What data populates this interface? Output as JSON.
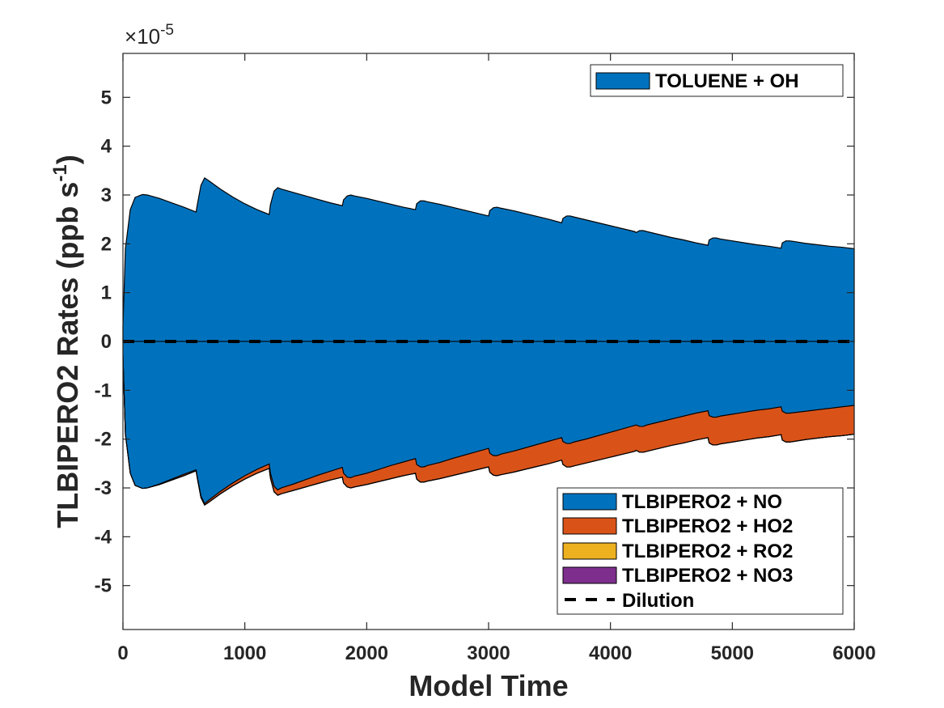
{
  "chart_data": {
    "type": "area",
    "xlabel": "Model Time",
    "ylabel": "TLBIPERO2 Rates (ppb s",
    "ylabel_superscript": "-1",
    "ylabel_suffix": ")",
    "y_multiplier": "10",
    "y_multiplier_prefix": "×",
    "y_multiplier_exponent": "-5",
    "xlim": [
      0,
      6000
    ],
    "ylim": [
      -5.9,
      5.9
    ],
    "xticks": [
      0,
      1000,
      2000,
      3000,
      4000,
      5000,
      6000
    ],
    "yticks": [
      -5,
      -4,
      -3,
      -2,
      -1,
      0,
      1,
      2,
      3,
      4,
      5
    ],
    "xtick_labels": [
      "0",
      "1000",
      "2000",
      "3000",
      "4000",
      "5000",
      "6000"
    ],
    "ytick_labels": [
      "-5",
      "-4",
      "-3",
      "-2",
      "-1",
      "0",
      "1",
      "2",
      "3",
      "4",
      "5"
    ],
    "grid": false,
    "production_legend_position": "top-right",
    "loss_legend_position": "bottom-right",
    "series": [
      {
        "name": "TOLUENE + OH",
        "kind": "production",
        "color": "#0072BD",
        "x": [
          0,
          20,
          60,
          100,
          160,
          200,
          300,
          400,
          500,
          600,
          610,
          640,
          670,
          700,
          800,
          900,
          1000,
          1100,
          1200,
          1210,
          1240,
          1270,
          1300,
          1400,
          1500,
          1600,
          1700,
          1800,
          1810,
          1840,
          1870,
          1900,
          2000,
          2100,
          2200,
          2300,
          2400,
          2410,
          2440,
          2470,
          2500,
          2600,
          2700,
          2800,
          2900,
          3000,
          3010,
          3040,
          3070,
          3100,
          3200,
          3300,
          3400,
          3500,
          3600,
          3610,
          3640,
          3670,
          3700,
          3800,
          3900,
          4000,
          4100,
          4200,
          4210,
          4240,
          4270,
          4300,
          4400,
          4500,
          4600,
          4700,
          4800,
          4810,
          4840,
          4870,
          4900,
          5000,
          5100,
          5200,
          5300,
          5400,
          5410,
          5440,
          5470,
          5500,
          5600,
          5700,
          5800,
          5900,
          6000
        ],
        "values": [
          0.3,
          1.9,
          2.7,
          2.95,
          3.01,
          3.0,
          2.93,
          2.84,
          2.75,
          2.65,
          2.8,
          3.2,
          3.35,
          3.3,
          3.12,
          2.96,
          2.82,
          2.7,
          2.6,
          2.8,
          3.08,
          3.15,
          3.12,
          3.05,
          2.98,
          2.91,
          2.84,
          2.78,
          2.9,
          2.98,
          3.0,
          2.98,
          2.93,
          2.87,
          2.81,
          2.75,
          2.7,
          2.82,
          2.88,
          2.88,
          2.86,
          2.81,
          2.75,
          2.69,
          2.63,
          2.57,
          2.68,
          2.74,
          2.75,
          2.73,
          2.68,
          2.62,
          2.56,
          2.5,
          2.43,
          2.52,
          2.57,
          2.57,
          2.55,
          2.49,
          2.43,
          2.37,
          2.31,
          2.25,
          2.23,
          2.27,
          2.27,
          2.25,
          2.19,
          2.13,
          2.08,
          2.02,
          1.97,
          2.08,
          2.12,
          2.12,
          2.1,
          2.06,
          2.02,
          1.98,
          1.95,
          1.91,
          2.02,
          2.06,
          2.06,
          2.05,
          2.01,
          1.98,
          1.95,
          1.93,
          1.9
        ]
      },
      {
        "name": "TLBIPERO2 + NO",
        "kind": "loss",
        "color": "#0072BD",
        "x": [
          0,
          20,
          60,
          100,
          160,
          200,
          300,
          400,
          500,
          600,
          610,
          640,
          670,
          700,
          800,
          900,
          1000,
          1100,
          1200,
          1210,
          1240,
          1270,
          1300,
          1400,
          1500,
          1600,
          1700,
          1800,
          1810,
          1840,
          1870,
          1900,
          2000,
          2100,
          2200,
          2300,
          2400,
          2410,
          2440,
          2470,
          2500,
          2600,
          2700,
          2800,
          2900,
          3000,
          3010,
          3040,
          3070,
          3100,
          3200,
          3300,
          3400,
          3500,
          3600,
          3610,
          3640,
          3670,
          3700,
          3800,
          3900,
          4000,
          4100,
          4200,
          4210,
          4240,
          4270,
          4300,
          4400,
          4500,
          4600,
          4700,
          4800,
          4810,
          4840,
          4870,
          4900,
          5000,
          5100,
          5200,
          5300,
          5400,
          5410,
          5440,
          5470,
          5500,
          5600,
          5700,
          5800,
          5900,
          6000
        ],
        "values": [
          -0.3,
          -1.9,
          -2.7,
          -2.95,
          -3.01,
          -3.0,
          -2.92,
          -2.82,
          -2.72,
          -2.63,
          -2.78,
          -3.17,
          -3.32,
          -3.26,
          -3.07,
          -2.9,
          -2.75,
          -2.62,
          -2.51,
          -2.7,
          -2.97,
          -3.04,
          -3.0,
          -2.92,
          -2.83,
          -2.74,
          -2.66,
          -2.58,
          -2.7,
          -2.78,
          -2.79,
          -2.76,
          -2.7,
          -2.62,
          -2.54,
          -2.47,
          -2.4,
          -2.52,
          -2.57,
          -2.57,
          -2.54,
          -2.48,
          -2.4,
          -2.33,
          -2.26,
          -2.19,
          -2.29,
          -2.34,
          -2.34,
          -2.31,
          -2.25,
          -2.18,
          -2.11,
          -2.04,
          -1.97,
          -2.05,
          -2.09,
          -2.09,
          -2.06,
          -2.0,
          -1.93,
          -1.86,
          -1.79,
          -1.72,
          -1.71,
          -1.74,
          -1.74,
          -1.71,
          -1.65,
          -1.59,
          -1.53,
          -1.47,
          -1.42,
          -1.52,
          -1.55,
          -1.55,
          -1.53,
          -1.49,
          -1.45,
          -1.41,
          -1.38,
          -1.34,
          -1.43,
          -1.47,
          -1.47,
          -1.46,
          -1.43,
          -1.4,
          -1.37,
          -1.34,
          -1.31
        ]
      },
      {
        "name": "TLBIPERO2 + HO2",
        "kind": "loss",
        "color": "#D95319",
        "values": [
          0,
          0,
          0,
          0,
          0,
          0,
          0.01,
          0.02,
          0.03,
          0.02,
          0.02,
          0.03,
          0.03,
          0.04,
          0.05,
          0.06,
          0.07,
          0.08,
          0.09,
          0.1,
          0.11,
          0.11,
          0.12,
          0.13,
          0.15,
          0.17,
          0.18,
          0.2,
          0.2,
          0.2,
          0.21,
          0.22,
          0.23,
          0.25,
          0.27,
          0.28,
          0.3,
          0.3,
          0.31,
          0.31,
          0.32,
          0.33,
          0.35,
          0.36,
          0.37,
          0.38,
          0.39,
          0.4,
          0.41,
          0.42,
          0.43,
          0.44,
          0.45,
          0.46,
          0.46,
          0.47,
          0.48,
          0.48,
          0.49,
          0.49,
          0.5,
          0.51,
          0.52,
          0.53,
          0.52,
          0.53,
          0.53,
          0.54,
          0.54,
          0.54,
          0.55,
          0.55,
          0.55,
          0.56,
          0.57,
          0.57,
          0.57,
          0.57,
          0.57,
          0.57,
          0.57,
          0.57,
          0.59,
          0.59,
          0.59,
          0.59,
          0.58,
          0.58,
          0.58,
          0.59,
          0.59
        ]
      },
      {
        "name": "TLBIPERO2 + RO2",
        "kind": "loss",
        "color": "#EDB120",
        "values": [
          0,
          0,
          0,
          0,
          0,
          0,
          0,
          0,
          0,
          0,
          0,
          0,
          0,
          0,
          0,
          0,
          0,
          0,
          0,
          0,
          0,
          0,
          0,
          0,
          0,
          0,
          0,
          0,
          0,
          0,
          0,
          0,
          0,
          0,
          0,
          0,
          0,
          0,
          0,
          0,
          0,
          0,
          0,
          0,
          0,
          0,
          0,
          0,
          0,
          0,
          0,
          0,
          0,
          0,
          0,
          0,
          0,
          0,
          0,
          0,
          0,
          0,
          0,
          0,
          0,
          0,
          0,
          0,
          0,
          0,
          0,
          0,
          0,
          0,
          0,
          0,
          0,
          0,
          0,
          0,
          0,
          0,
          0,
          0,
          0,
          0,
          0,
          0,
          0,
          0,
          0
        ]
      },
      {
        "name": "TLBIPERO2 + NO3",
        "kind": "loss",
        "color": "#7E2F8E",
        "values": [
          0,
          0,
          0,
          0,
          0,
          0,
          0,
          0,
          0,
          0,
          0,
          0,
          0,
          0,
          0,
          0,
          0,
          0,
          0,
          0,
          0,
          0,
          0,
          0,
          0,
          0,
          0,
          0,
          0,
          0,
          0,
          0,
          0,
          0,
          0,
          0,
          0,
          0,
          0,
          0,
          0,
          0,
          0,
          0,
          0,
          0,
          0,
          0,
          0,
          0,
          0,
          0,
          0,
          0,
          0,
          0,
          0,
          0,
          0,
          0,
          0,
          0,
          0,
          0,
          0,
          0,
          0,
          0,
          0,
          0,
          0,
          0,
          0,
          0,
          0,
          0,
          0,
          0,
          0,
          0,
          0,
          0,
          0,
          0,
          0,
          0,
          0,
          0,
          0,
          0,
          0
        ]
      },
      {
        "name": "Dilution",
        "kind": "line",
        "color": "#000000",
        "line_style": "dashed",
        "x": [
          0,
          6000
        ],
        "values": [
          0,
          0
        ]
      }
    ]
  }
}
